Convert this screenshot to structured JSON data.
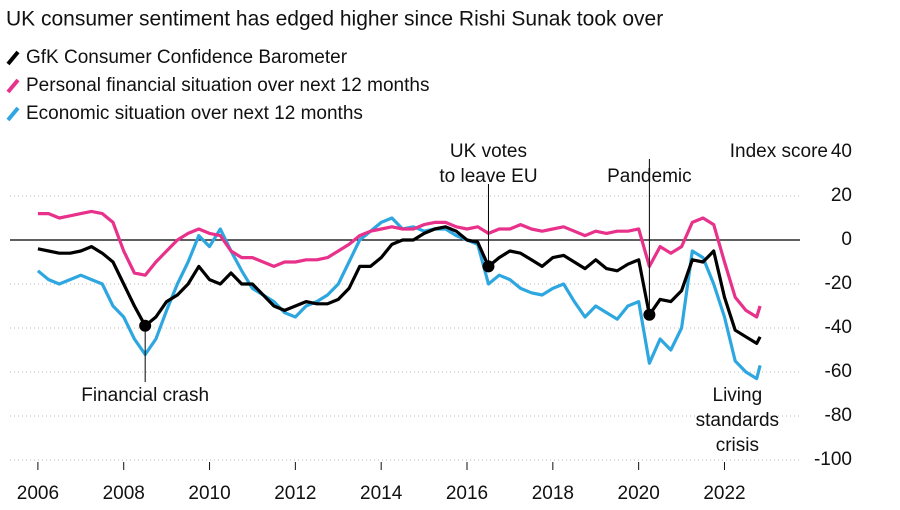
{
  "chart_data": {
    "type": "line",
    "title": "UK consumer sentiment has edged higher since Rishi Sunak took over",
    "y_label": "Index score",
    "x": [
      2006,
      2006.25,
      2006.5,
      2006.75,
      2007,
      2007.25,
      2007.5,
      2007.75,
      2008,
      2008.25,
      2008.5,
      2008.75,
      2009,
      2009.25,
      2009.5,
      2009.75,
      2010,
      2010.25,
      2010.5,
      2010.75,
      2011,
      2011.25,
      2011.5,
      2011.75,
      2012,
      2012.25,
      2012.5,
      2012.75,
      2013,
      2013.25,
      2013.5,
      2013.75,
      2014,
      2014.25,
      2014.5,
      2014.75,
      2015,
      2015.25,
      2015.5,
      2015.75,
      2016,
      2016.25,
      2016.5,
      2016.75,
      2017,
      2017.25,
      2017.5,
      2017.75,
      2018,
      2018.25,
      2018.5,
      2018.75,
      2019,
      2019.25,
      2019.5,
      2019.75,
      2020,
      2020.25,
      2020.5,
      2020.75,
      2021,
      2021.25,
      2021.5,
      2021.75,
      2022,
      2022.25,
      2022.5,
      2022.75,
      2022.83
    ],
    "series": [
      {
        "name": "GfK Consumer Confidence Barometer",
        "color": "#000000",
        "values": [
          -4,
          -5,
          -6,
          -6,
          -5,
          -3,
          -6,
          -10,
          -20,
          -30,
          -39,
          -35,
          -28,
          -25,
          -20,
          -12,
          -18,
          -20,
          -15,
          -20,
          -20,
          -25,
          -30,
          -32,
          -30,
          -28,
          -29,
          -29,
          -27,
          -22,
          -12,
          -12,
          -8,
          -2,
          0,
          0,
          3,
          5,
          6,
          4,
          0,
          -1,
          -12,
          -8,
          -5,
          -6,
          -9,
          -12,
          -8,
          -7,
          -10,
          -13,
          -9,
          -13,
          -14,
          -11,
          -9,
          -34,
          -27,
          -28,
          -23,
          -9,
          -10,
          -5,
          -26,
          -41,
          -44,
          -47,
          -44
        ]
      },
      {
        "name": "Personal financial situation over next 12 months",
        "color": "#e8318a",
        "values": [
          12,
          12,
          10,
          11,
          12,
          13,
          12,
          8,
          -5,
          -15,
          -16,
          -10,
          -5,
          0,
          3,
          5,
          3,
          2,
          -5,
          -8,
          -8,
          -10,
          -12,
          -10,
          -10,
          -9,
          -9,
          -8,
          -5,
          -2,
          2,
          4,
          5,
          6,
          5,
          5,
          7,
          8,
          8,
          6,
          5,
          6,
          3,
          5,
          5,
          7,
          5,
          4,
          5,
          6,
          4,
          2,
          4,
          3,
          4,
          4,
          5,
          -12,
          -3,
          -6,
          -3,
          8,
          10,
          7,
          -10,
          -26,
          -32,
          -35,
          -30
        ]
      },
      {
        "name": "Economic situation over next 12 months",
        "color": "#2ea7e0",
        "values": [
          -14,
          -18,
          -20,
          -18,
          -16,
          -18,
          -20,
          -30,
          -35,
          -45,
          -52,
          -45,
          -32,
          -20,
          -10,
          2,
          -3,
          5,
          -5,
          -14,
          -22,
          -25,
          -28,
          -33,
          -35,
          -30,
          -28,
          -25,
          -20,
          -10,
          0,
          4,
          8,
          10,
          5,
          6,
          4,
          5,
          5,
          2,
          0,
          -2,
          -20,
          -16,
          -18,
          -22,
          -24,
          -25,
          -22,
          -20,
          -28,
          -35,
          -30,
          -33,
          -36,
          -30,
          -28,
          -56,
          -45,
          -50,
          -40,
          -5,
          -8,
          -20,
          -35,
          -55,
          -60,
          -63,
          -57
        ]
      }
    ],
    "xlim": [
      2005.35,
      2023.76
    ],
    "xticks": [
      2006,
      2008,
      2010,
      2012,
      2014,
      2016,
      2018,
      2020,
      2022
    ],
    "ylim": [
      -100,
      40
    ],
    "yticks": [
      40,
      20,
      0,
      -20,
      -40,
      -60,
      -80,
      -100
    ],
    "grid": true,
    "annotations": [
      {
        "lines": [
          "Financial crash"
        ],
        "x": 2008.5,
        "y": -39,
        "side": "below"
      },
      {
        "lines": [
          "UK votes",
          "to leave EU"
        ],
        "x": 2016.5,
        "y": -12,
        "side": "above"
      },
      {
        "lines": [
          "Pandemic"
        ],
        "x": 2020.25,
        "y": -34,
        "side": "above"
      },
      {
        "lines": [
          "Living",
          "standards",
          "crisis"
        ],
        "x": 2022.3
      }
    ]
  }
}
